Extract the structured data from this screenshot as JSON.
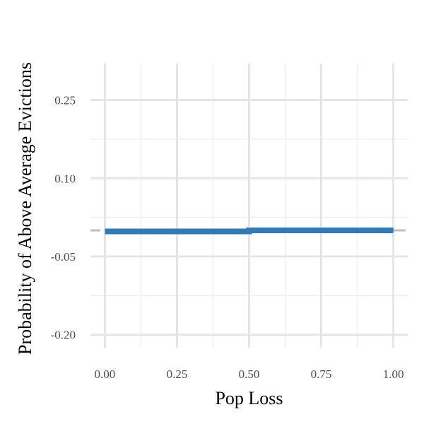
{
  "chart_data": {
    "type": "line",
    "title": "",
    "xlabel": "Pop Loss",
    "ylabel": "Probability of Above Average Evictions",
    "x_ticks": [
      "0.00",
      "0.25",
      "0.50",
      "0.75",
      "1.00"
    ],
    "y_ticks": [
      "0.25",
      "0.10",
      "-0.05",
      "-0.20"
    ],
    "x_tick_values": [
      0,
      0.25,
      0.5,
      0.75,
      1.0
    ],
    "y_tick_values": [
      0.25,
      0.1,
      -0.05,
      -0.2
    ],
    "xlim": [
      -0.05,
      1.05
    ],
    "ylim": [
      -0.225,
      0.32
    ],
    "reference_line": {
      "y": 0.0,
      "style": "dashed",
      "color": "#bdbdbd"
    },
    "grid": true,
    "series": [
      {
        "x": [
          0.0,
          0.5,
          0.5,
          1.0
        ],
        "y": [
          -0.002,
          -0.002,
          0.0,
          0.0
        ],
        "color": "#2f7ab9"
      }
    ]
  }
}
